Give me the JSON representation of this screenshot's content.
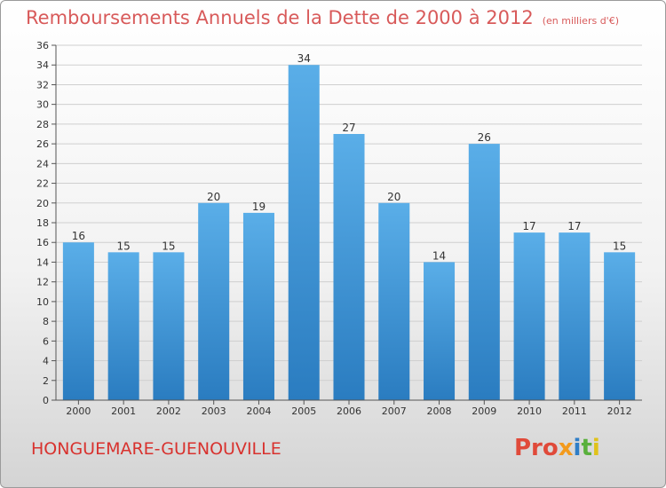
{
  "header": {
    "title": "Remboursements Annuels de la Dette de 2000 à 2012",
    "unit": "(en milliers d'€)"
  },
  "footer": {
    "commune": "HONGUEMARE-GUENOUVILLE",
    "brand": [
      "Pro",
      "x",
      "i",
      "t",
      "i"
    ]
  },
  "colors": {
    "bar_top": "#5aaee8",
    "bar_bottom": "#2a7cc0",
    "title": "#d85a5a",
    "grid": "#cfcfcf"
  },
  "chart_data": {
    "type": "bar",
    "title": "Remboursements Annuels de la Dette de 2000 à 2012",
    "categories": [
      "2000",
      "2001",
      "2002",
      "2003",
      "2004",
      "2005",
      "2006",
      "2007",
      "2008",
      "2009",
      "2010",
      "2011",
      "2012"
    ],
    "values": [
      16,
      15,
      15,
      20,
      19,
      34,
      27,
      20,
      14,
      26,
      17,
      17,
      15
    ],
    "ylim": [
      0,
      36
    ],
    "yticks": [
      0,
      2,
      4,
      6,
      8,
      10,
      12,
      14,
      16,
      18,
      20,
      22,
      24,
      26,
      28,
      30,
      32,
      34,
      36
    ],
    "grid": true
  }
}
